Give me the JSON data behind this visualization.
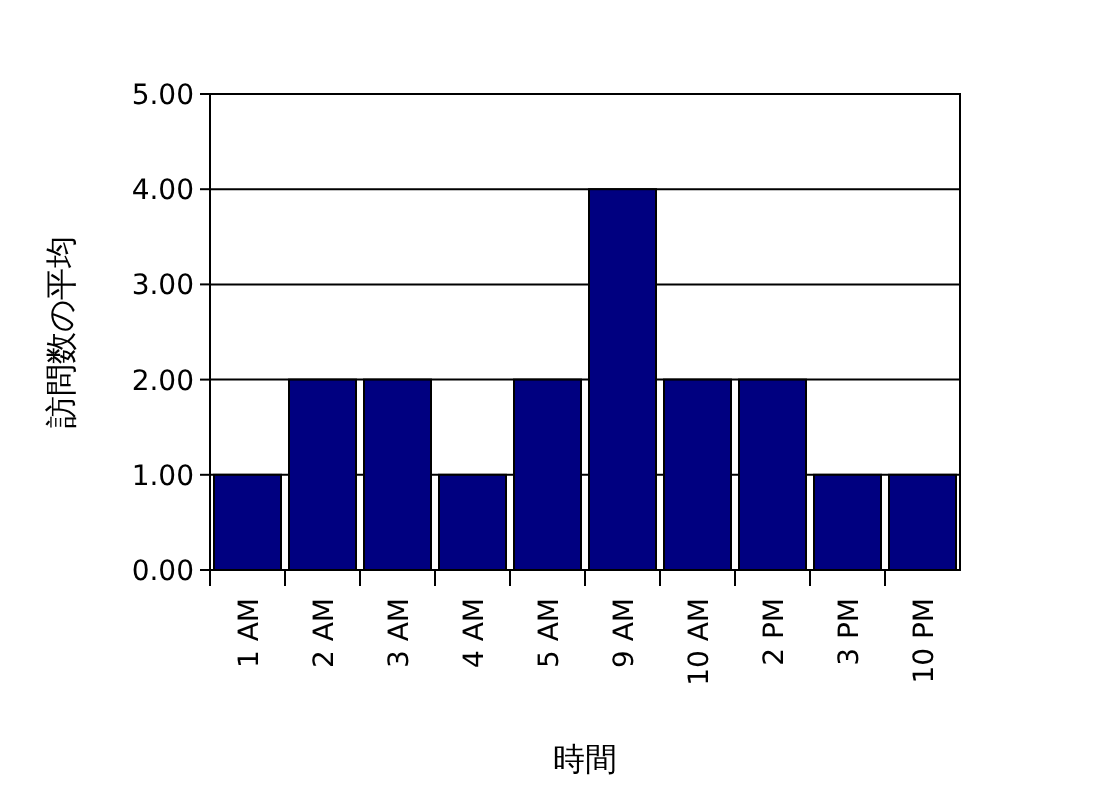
{
  "chart_data": {
    "type": "bar",
    "xlabel": "時間",
    "ylabel": "訪問数の平均",
    "categories": [
      "1 AM",
      "2 AM",
      "3 AM",
      "4 AM",
      "5 AM",
      "9 AM",
      "10 AM",
      "2 PM",
      "3 PM",
      "10 PM"
    ],
    "values": [
      1,
      2,
      2,
      1,
      2,
      4,
      2,
      2,
      1,
      1
    ],
    "color": "#000080",
    "ylim": [
      0,
      5
    ],
    "yticks": [
      {
        "value": 0,
        "label": "0.00"
      },
      {
        "value": 1,
        "label": "1.00"
      },
      {
        "value": 2,
        "label": "2.00"
      },
      {
        "value": 3,
        "label": "3.00"
      },
      {
        "value": 4,
        "label": "4.00"
      },
      {
        "value": 5,
        "label": "5.00"
      }
    ],
    "grid": "y"
  }
}
